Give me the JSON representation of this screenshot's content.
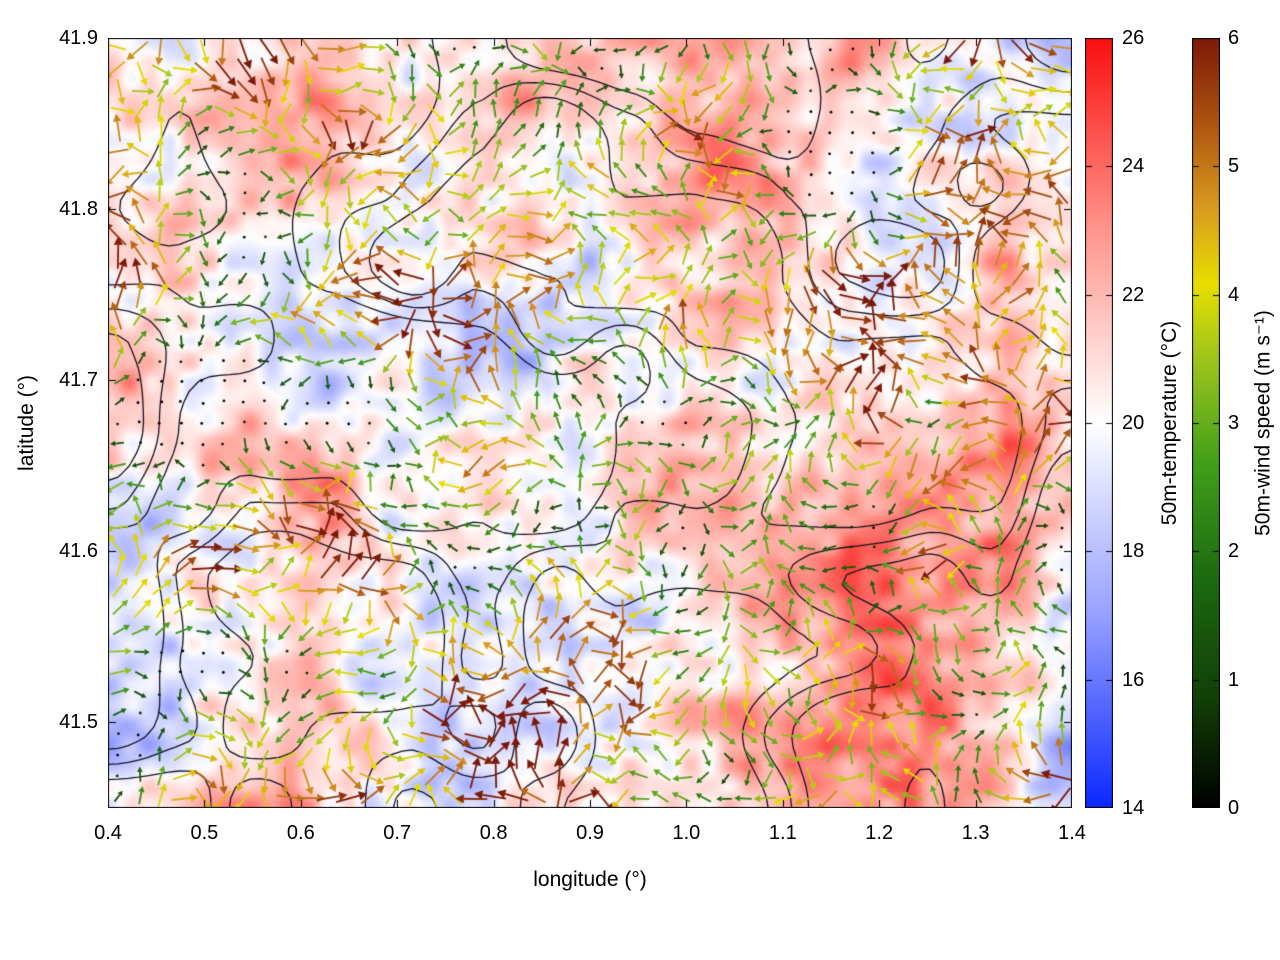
{
  "chart_data": {
    "type": "heatmap",
    "subtype": "temperature field with wind-vector overlay and black terrain contour lines",
    "title": "",
    "xlabel": "longitude (°)",
    "ylabel": "latitude (°)",
    "x_range": [
      0.4,
      1.4
    ],
    "y_range": [
      41.45,
      41.9
    ],
    "x_ticks": [
      0.4,
      0.5,
      0.6,
      0.7,
      0.8,
      0.9,
      1.0,
      1.1,
      1.2,
      1.3,
      1.4
    ],
    "x_tick_labels": [
      "0.4",
      "0.5",
      "0.6",
      "0.7",
      "0.8",
      "0.9",
      "1.0",
      "1.1",
      "1.2",
      "1.3",
      "1.4"
    ],
    "y_ticks": [
      41.5,
      41.6,
      41.7,
      41.8,
      41.9
    ],
    "y_tick_labels": [
      "41.5",
      "41.6",
      "41.7",
      "41.8",
      "41.9"
    ],
    "grid": false,
    "legend": "none",
    "overlays": [
      "50m temperature shaded field (blue-white-red)",
      "black contour lines (terrain/analysis contours)",
      "dense wind-vector arrows on a regular grid, colored by 50m wind speed"
    ],
    "notes": "Temperature mostly 20-24 °C (white to salmon/red) with scattered cooler pale-blue patches near 18-19 °C; wind arrows range from near-calm black dots through dark green, green, yellow (~4 m/s), orange (~5 m/s) to dark brick-red streaks (~6 m/s).",
    "colorbars": [
      {
        "label": "50m-temperature (°C)",
        "range": [
          14,
          26
        ],
        "ticks": [
          14,
          16,
          18,
          20,
          22,
          24,
          26
        ],
        "tick_labels": [
          "14",
          "16",
          "18",
          "20",
          "22",
          "24",
          "26"
        ],
        "stops": [
          {
            "pos": 0.0,
            "color": "#0a28ff"
          },
          {
            "pos": 0.25,
            "color": "#96a0ff"
          },
          {
            "pos": 0.5,
            "color": "#ffffff"
          },
          {
            "pos": 0.75,
            "color": "#ff968c"
          },
          {
            "pos": 1.0,
            "color": "#fa0f0f"
          }
        ]
      },
      {
        "label": "50m-wind speed (m s⁻¹)",
        "range": [
          0,
          6
        ],
        "ticks": [
          0,
          1,
          2,
          3,
          4,
          5,
          6
        ],
        "tick_labels": [
          "0",
          "1",
          "2",
          "3",
          "4",
          "5",
          "6"
        ],
        "stops": [
          {
            "pos": 0.0,
            "color": "#000000"
          },
          {
            "pos": 0.14,
            "color": "#123f07"
          },
          {
            "pos": 0.3,
            "color": "#1c6b10"
          },
          {
            "pos": 0.45,
            "color": "#43a01a"
          },
          {
            "pos": 0.58,
            "color": "#9cc41c"
          },
          {
            "pos": 0.68,
            "color": "#e6df00"
          },
          {
            "pos": 0.78,
            "color": "#d99a1e"
          },
          {
            "pos": 0.88,
            "color": "#b05a12"
          },
          {
            "pos": 1.0,
            "color": "#7c1a08"
          }
        ]
      }
    ],
    "contour_color": "#14141f",
    "frame_color": "#000000"
  }
}
